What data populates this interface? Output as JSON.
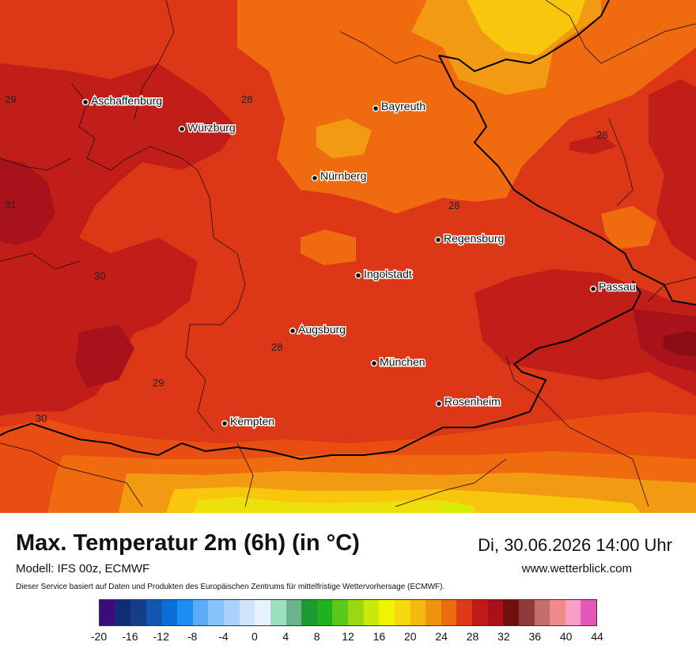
{
  "map": {
    "cities": [
      {
        "name": "Aschaffenburg"
      },
      {
        "name": "Würzburg"
      },
      {
        "name": "Bayreuth"
      },
      {
        "name": "Nürnberg"
      },
      {
        "name": "Regensburg"
      },
      {
        "name": "Ingolstadt"
      },
      {
        "name": "Passau"
      },
      {
        "name": "Augsburg"
      },
      {
        "name": "München"
      },
      {
        "name": "Rosenheim"
      },
      {
        "name": "Kempten"
      }
    ],
    "isolines": [
      "29",
      "28",
      "28",
      "31",
      "28",
      "30",
      "28",
      "29",
      "30"
    ],
    "colors": {
      "c26": "#f06a0f",
      "c27": "#e84e12",
      "c28": "#dc3716",
      "c29": "#c11d19",
      "c30": "#a8121a",
      "c31": "#8a0d14",
      "c24": "#f29a12",
      "c22": "#f7c60d",
      "c20": "#eee10b",
      "c18": "#d8eb06"
    }
  },
  "footer": {
    "title": "Max. Temperatur 2m (6h) (in °C)",
    "datetime": "Di, 30.06.2026 14:00 Uhr",
    "model": "Modell: IFS 00z, ECMWF",
    "website": "www.wetterblick.com",
    "disclaimer": "Dieser Service basiert auf Daten und Produkten des Europäischen Zentrums für mittelfristige Wettervorhersage (ECMWF)."
  },
  "legend": {
    "colors": [
      "#3a0c7e",
      "#102d74",
      "#143f88",
      "#1256b0",
      "#0c6fd8",
      "#1b8ef0",
      "#5aabf8",
      "#87c3fb",
      "#a9d2fb",
      "#cde4fb",
      "#e6f2fd",
      "#9edfc2",
      "#69b48d",
      "#1e9a32",
      "#20b21e",
      "#5ec81a",
      "#9ad812",
      "#cbe80b",
      "#eef402",
      "#f7d70d",
      "#f2ba0e",
      "#f09410",
      "#ec6a10",
      "#de3918",
      "#be1a1a",
      "#a9111a",
      "#720f0f",
      "#8f3a3a",
      "#c46e6e",
      "#f28a8a",
      "#f99ec4",
      "#e558b8"
    ],
    "ticks": [
      "-20",
      "-16",
      "-12",
      "-8",
      "-4",
      "0",
      "4",
      "8",
      "12",
      "16",
      "20",
      "24",
      "28",
      "32",
      "36",
      "40",
      "44"
    ]
  }
}
